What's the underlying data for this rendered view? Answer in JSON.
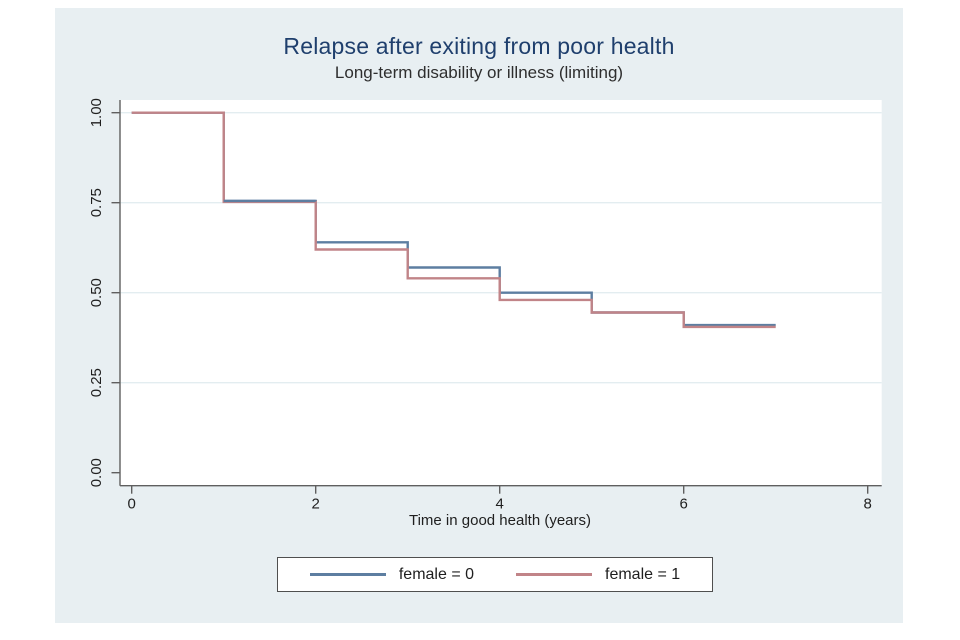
{
  "window": {
    "background": "#ffffff",
    "panel_background": "#e8eff2"
  },
  "colors": {
    "plot_bg": "#ffffff",
    "grid": "#e3edf0",
    "axis": "#5f5f5f",
    "tick_text": "#1f1f1f",
    "title": "#1f3f6d",
    "subtitle": "#2e2e2e",
    "legend_border": "#4f4f4f"
  },
  "chart_data": {
    "type": "line",
    "subtype": "kaplan-meier-step",
    "title": "Relapse after exiting from poor health",
    "subtitle": "Long-term disability or illness (limiting)",
    "xlabel": "Time in good health (years)",
    "ylabel": "",
    "xlim": [
      0,
      8
    ],
    "ylim": [
      0.0,
      1.0
    ],
    "grid": "horizontal-only",
    "legend_position": "bottom",
    "x_ticks": [
      0,
      2,
      4,
      6,
      8
    ],
    "y_ticks": [
      0.0,
      0.25,
      0.5,
      0.75,
      1.0
    ],
    "y_tick_labels": [
      "0.00",
      "0.25",
      "0.50",
      "0.75",
      "1.00"
    ],
    "step_times": [
      0,
      1,
      2,
      3,
      4,
      5,
      6
    ],
    "end_time": 7,
    "series": [
      {
        "name": "female = 0",
        "color": "#5d7ea1",
        "values": [
          1.0,
          0.755,
          0.64,
          0.57,
          0.5,
          0.445,
          0.41
        ]
      },
      {
        "name": "female = 1",
        "color": "#c18488",
        "values": [
          1.0,
          0.752,
          0.62,
          0.54,
          0.48,
          0.445,
          0.405
        ]
      }
    ]
  }
}
